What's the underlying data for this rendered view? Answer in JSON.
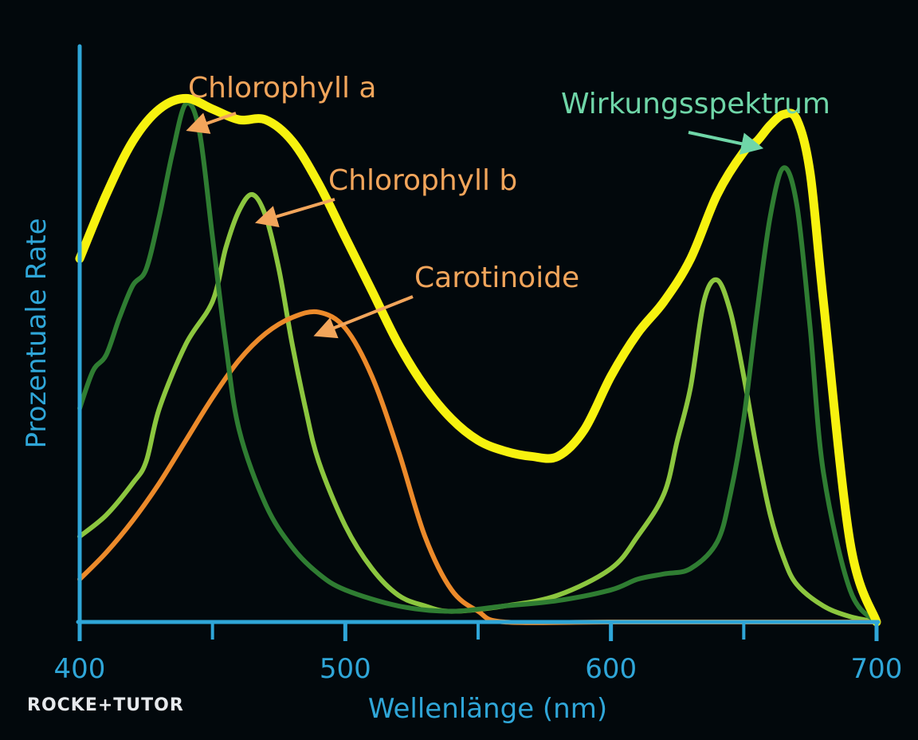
{
  "chart_data": {
    "type": "line",
    "xlabel": "Wellenlänge (nm)",
    "ylabel": "Prozentuale Rate",
    "xlim": [
      400,
      700
    ],
    "ylim": [
      0,
      100
    ],
    "x_ticks": [
      400,
      500,
      600,
      700
    ],
    "x_minor_ticks": [
      450,
      550,
      650
    ],
    "grid": false,
    "series": [
      {
        "name": "Wirkungsspektrum",
        "color": "#f7f20f",
        "x": [
          400,
          410,
          420,
          430,
          440,
          450,
          460,
          470,
          480,
          490,
          500,
          510,
          520,
          530,
          540,
          550,
          560,
          570,
          580,
          590,
          600,
          610,
          620,
          630,
          640,
          650,
          655,
          660,
          665,
          670,
          675,
          680,
          690,
          700
        ],
        "y": [
          68,
          80,
          90,
          96,
          98,
          96,
          94,
          94,
          90,
          82,
          72,
          62,
          52,
          44,
          38,
          34,
          32,
          31,
          31,
          36,
          46,
          54,
          60,
          68,
          80,
          88,
          90,
          93,
          95,
          94,
          84,
          60,
          15,
          0
        ]
      },
      {
        "name": "Chlorophyll a",
        "color": "#2f7d32",
        "x": [
          400,
          405,
          410,
          415,
          420,
          425,
          430,
          435,
          440,
          445,
          450,
          455,
          460,
          470,
          480,
          490,
          500,
          520,
          540,
          560,
          580,
          600,
          610,
          620,
          630,
          640,
          645,
          650,
          655,
          660,
          665,
          670,
          675,
          680,
          690,
          700
        ],
        "y": [
          40,
          47,
          50,
          57,
          63,
          66,
          76,
          88,
          97,
          92,
          72,
          52,
          36,
          22,
          14,
          9,
          6,
          3,
          2,
          3,
          4,
          6,
          8,
          9,
          10,
          15,
          24,
          38,
          58,
          76,
          85,
          78,
          55,
          28,
          6,
          0
        ]
      },
      {
        "name": "Chlorophyll b",
        "color": "#8cc63f",
        "x": [
          400,
          410,
          420,
          425,
          430,
          440,
          450,
          455,
          460,
          465,
          470,
          475,
          480,
          485,
          490,
          500,
          510,
          520,
          530,
          540,
          560,
          580,
          600,
          610,
          620,
          625,
          630,
          635,
          640,
          645,
          650,
          655,
          660,
          665,
          670,
          680,
          690,
          700
        ],
        "y": [
          16,
          20,
          26,
          30,
          40,
          52,
          60,
          70,
          77,
          80,
          76,
          66,
          52,
          40,
          30,
          18,
          10,
          5,
          3,
          2,
          3,
          5,
          10,
          16,
          24,
          34,
          44,
          60,
          64,
          58,
          46,
          32,
          20,
          12,
          7,
          3,
          1,
          0
        ]
      },
      {
        "name": "Carotinoide",
        "color": "#ec8a2a",
        "x": [
          400,
          410,
          420,
          430,
          440,
          450,
          460,
          470,
          480,
          490,
          500,
          510,
          520,
          530,
          540,
          550,
          560,
          600,
          650,
          700
        ],
        "y": [
          8,
          13,
          19,
          26,
          34,
          42,
          49,
          54,
          57,
          58,
          55,
          46,
          32,
          16,
          6,
          2,
          0,
          0,
          0,
          0
        ]
      }
    ],
    "annotations": [
      {
        "text": "Chlorophyll a",
        "color": "#f2a55b",
        "points_to_x": 441,
        "points_to_y": 97
      },
      {
        "text": "Chlorophyll b",
        "color": "#f2a55b",
        "points_to_x": 467,
        "points_to_y": 80
      },
      {
        "text": "Carotinoide",
        "color": "#f2a55b",
        "points_to_x": 489,
        "points_to_y": 58
      },
      {
        "text": "Wirkungsspektrum",
        "color": "#6fd6a8",
        "points_to_x": 660,
        "points_to_y": 93
      }
    ]
  },
  "branding": {
    "logo": "ROCKE+TUTOR"
  },
  "colors": {
    "background": "#02080c",
    "axis": "#2fa6d8"
  }
}
